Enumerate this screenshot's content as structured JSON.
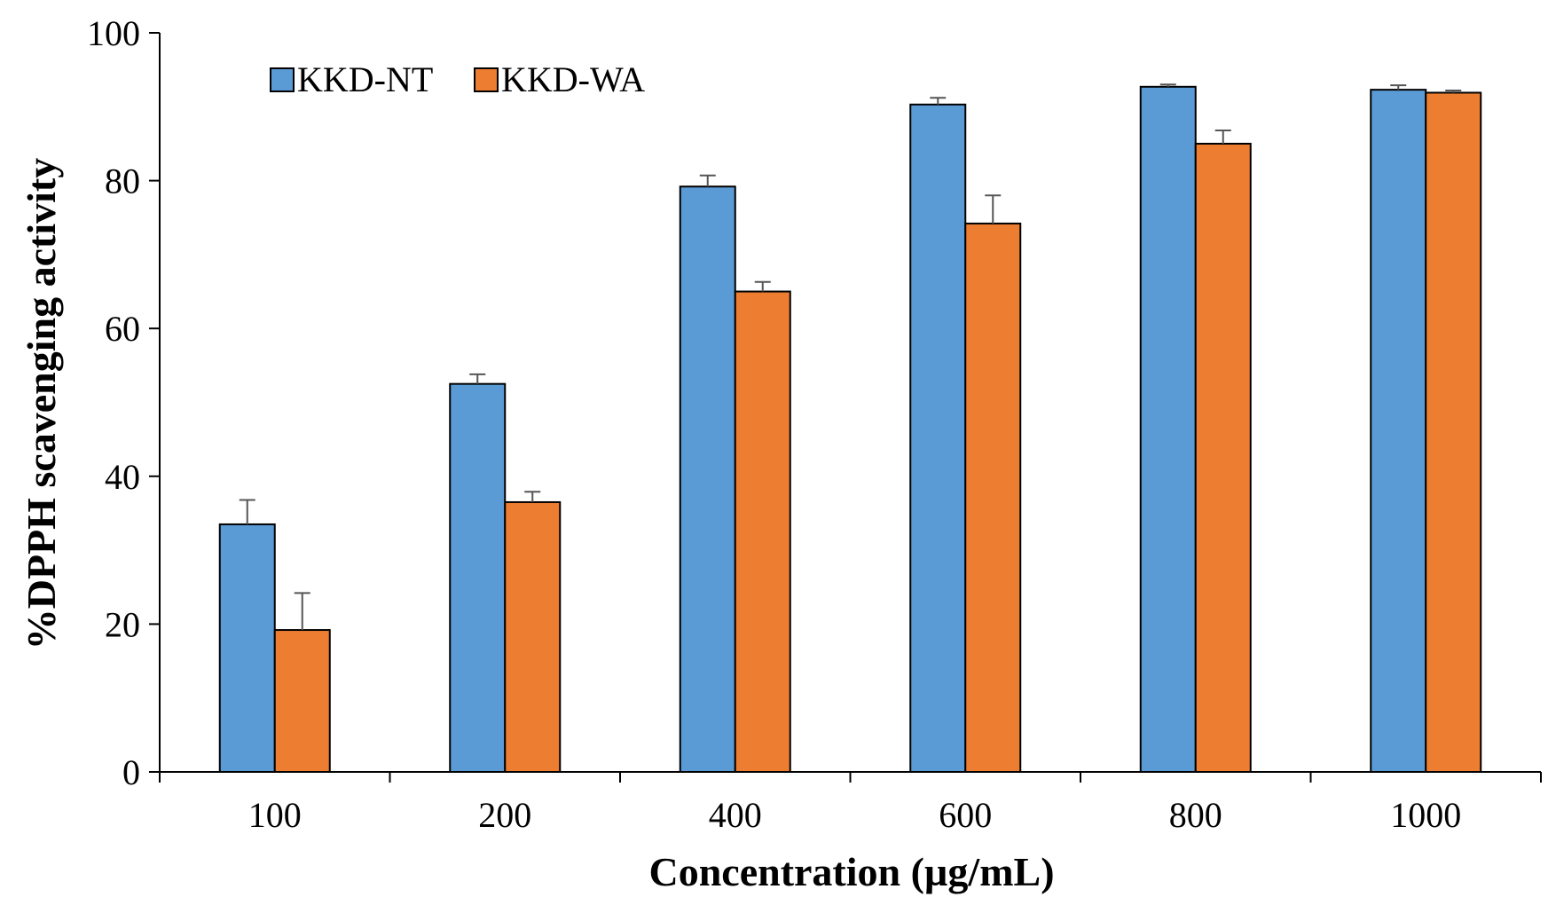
{
  "chart_data": {
    "type": "bar",
    "title": "",
    "xlabel": "Concentration (µg/mL)",
    "ylabel": "%DPPH scavenging activity",
    "categories": [
      "100",
      "200",
      "400",
      "600",
      "800",
      "1000"
    ],
    "ylim": [
      0,
      100
    ],
    "yticks": [
      "0",
      "20",
      "40",
      "60",
      "80",
      "100"
    ],
    "grid": false,
    "legend_position": "top-left",
    "series": [
      {
        "name": "KKD-NT",
        "color": "#5B9BD5",
        "values": [
          33.5,
          52.5,
          79.2,
          90.3,
          92.7,
          92.3
        ],
        "errors": [
          3.3,
          1.3,
          1.5,
          0.9,
          0.3,
          0.6
        ]
      },
      {
        "name": "KKD-WA",
        "color": "#ED7D31",
        "values": [
          19.2,
          36.5,
          65.0,
          74.2,
          85.0,
          91.9
        ],
        "errors": [
          5.0,
          1.4,
          1.3,
          3.8,
          1.8,
          0.3
        ]
      }
    ]
  }
}
